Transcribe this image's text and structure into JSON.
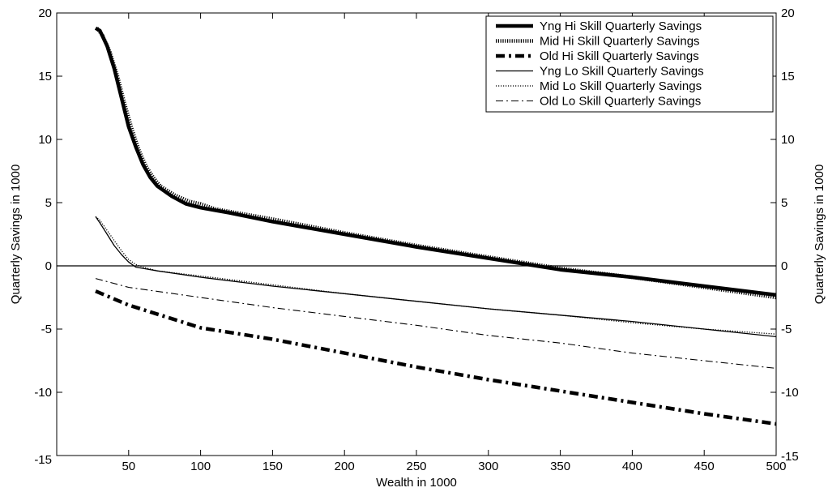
{
  "chart_data": {
    "type": "line",
    "xlabel": "Wealth in 1000",
    "ylabel": "Quarterly Savings in 1000",
    "ylabel_right": "Quarterly Savings in 1000",
    "xlim": [
      0,
      500
    ],
    "ylim": [
      -15,
      20
    ],
    "xticks": [
      50,
      100,
      150,
      200,
      250,
      300,
      350,
      400,
      450,
      500
    ],
    "yticks": [
      -15,
      -10,
      -5,
      0,
      5,
      10,
      15,
      20
    ],
    "grid": false,
    "zero_line": true,
    "legend_position": "top-right",
    "series": [
      {
        "name": "Yng Hi Skill Quarterly Savings",
        "style": "thick-solid",
        "x": [
          27,
          30,
          35,
          40,
          45,
          50,
          55,
          60,
          65,
          70,
          80,
          90,
          100,
          110,
          120,
          150,
          200,
          250,
          300,
          350,
          400,
          450,
          500
        ],
        "y": [
          18.8,
          18.6,
          17.4,
          15.6,
          13.3,
          11.0,
          9.4,
          8.0,
          7.0,
          6.3,
          5.5,
          4.9,
          4.6,
          4.4,
          4.2,
          3.5,
          2.5,
          1.5,
          0.6,
          -0.3,
          -0.9,
          -1.6,
          -2.3
        ]
      },
      {
        "name": "Mid Hi Skill Quarterly Savings",
        "style": "thick-dotted",
        "x": [
          28,
          32,
          37,
          42,
          47,
          52,
          57,
          62,
          67,
          72,
          82,
          92,
          100,
          110,
          120,
          150,
          200,
          250,
          300,
          350,
          400,
          450,
          500
        ],
        "y": [
          18.8,
          18.2,
          16.9,
          15.1,
          12.9,
          10.9,
          9.2,
          7.9,
          7.0,
          6.3,
          5.6,
          5.1,
          4.9,
          4.5,
          4.3,
          3.7,
          2.6,
          1.6,
          0.7,
          -0.2,
          -0.9,
          -1.7,
          -2.5
        ]
      },
      {
        "name": "Old Hi Skill Quarterly Savings",
        "style": "thick-dashdot",
        "x": [
          27,
          50,
          100,
          150,
          200,
          250,
          300,
          350,
          400,
          450,
          500
        ],
        "y": [
          -2.0,
          -3.1,
          -4.9,
          -5.8,
          -6.9,
          -8.0,
          -9.0,
          -9.9,
          -10.8,
          -11.7,
          -12.5
        ]
      },
      {
        "name": "Yng Lo Skill Quarterly Savings",
        "style": "thin-solid",
        "x": [
          27,
          30,
          35,
          40,
          45,
          50,
          55,
          60,
          70,
          100,
          150,
          200,
          250,
          300,
          350,
          400,
          450,
          500
        ],
        "y": [
          3.9,
          3.4,
          2.5,
          1.6,
          0.9,
          0.3,
          -0.1,
          -0.2,
          -0.4,
          -0.9,
          -1.6,
          -2.2,
          -2.8,
          -3.4,
          -3.9,
          -4.4,
          -5.0,
          -5.6
        ]
      },
      {
        "name": "Mid Lo Skill Quarterly Savings",
        "style": "thin-dotted",
        "x": [
          27,
          30,
          35,
          40,
          45,
          50,
          55,
          60,
          70,
          100,
          150,
          200,
          250,
          300,
          350,
          400,
          450,
          500
        ],
        "y": [
          3.9,
          3.6,
          2.8,
          2.0,
          1.2,
          0.5,
          0.1,
          -0.1,
          -0.4,
          -0.8,
          -1.5,
          -2.2,
          -2.8,
          -3.4,
          -3.9,
          -4.5,
          -5.0,
          -5.4
        ]
      },
      {
        "name": "Old Lo Skill Quarterly Savings",
        "style": "thin-dashdot",
        "x": [
          27,
          50,
          100,
          150,
          200,
          250,
          300,
          350,
          400,
          450,
          500
        ],
        "y": [
          -1.0,
          -1.7,
          -2.5,
          -3.3,
          -4.0,
          -4.7,
          -5.5,
          -6.1,
          -6.9,
          -7.5,
          -8.1
        ]
      }
    ]
  }
}
